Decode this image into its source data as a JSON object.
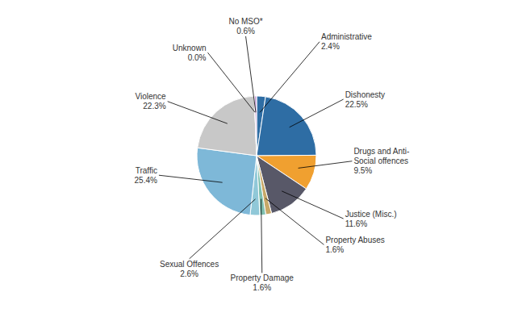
{
  "chart_data": {
    "type": "pie",
    "categories": [
      "Administrative",
      "Dishonesty",
      "Drugs and Anti-\nSocial offences",
      "Justice (Misc.)",
      "Property Abuses",
      "Property Damage",
      "Sexual Offences",
      "Traffic",
      "Violence",
      "Unknown",
      "No MSO*"
    ],
    "values": [
      2.4,
      22.5,
      9.5,
      11.6,
      1.6,
      1.6,
      2.6,
      25.4,
      22.3,
      0.01,
      0.6
    ],
    "value_labels": [
      "2.4%",
      "22.5%",
      "9.5%",
      "11.6%",
      "1.6%",
      "1.6%",
      "2.6%",
      "25.4%",
      "22.3%",
      "0.0%",
      "0.6%"
    ],
    "colors": [
      "#2E6DA4",
      "#2E6DA4",
      "#F0A030",
      "#585868",
      "#C8A868",
      "#80C0B0",
      "#90C8D8",
      "#7EB8D8",
      "#C8C8C8",
      "#E8D840",
      "#C8A0D8"
    ],
    "data_labels": true
  }
}
